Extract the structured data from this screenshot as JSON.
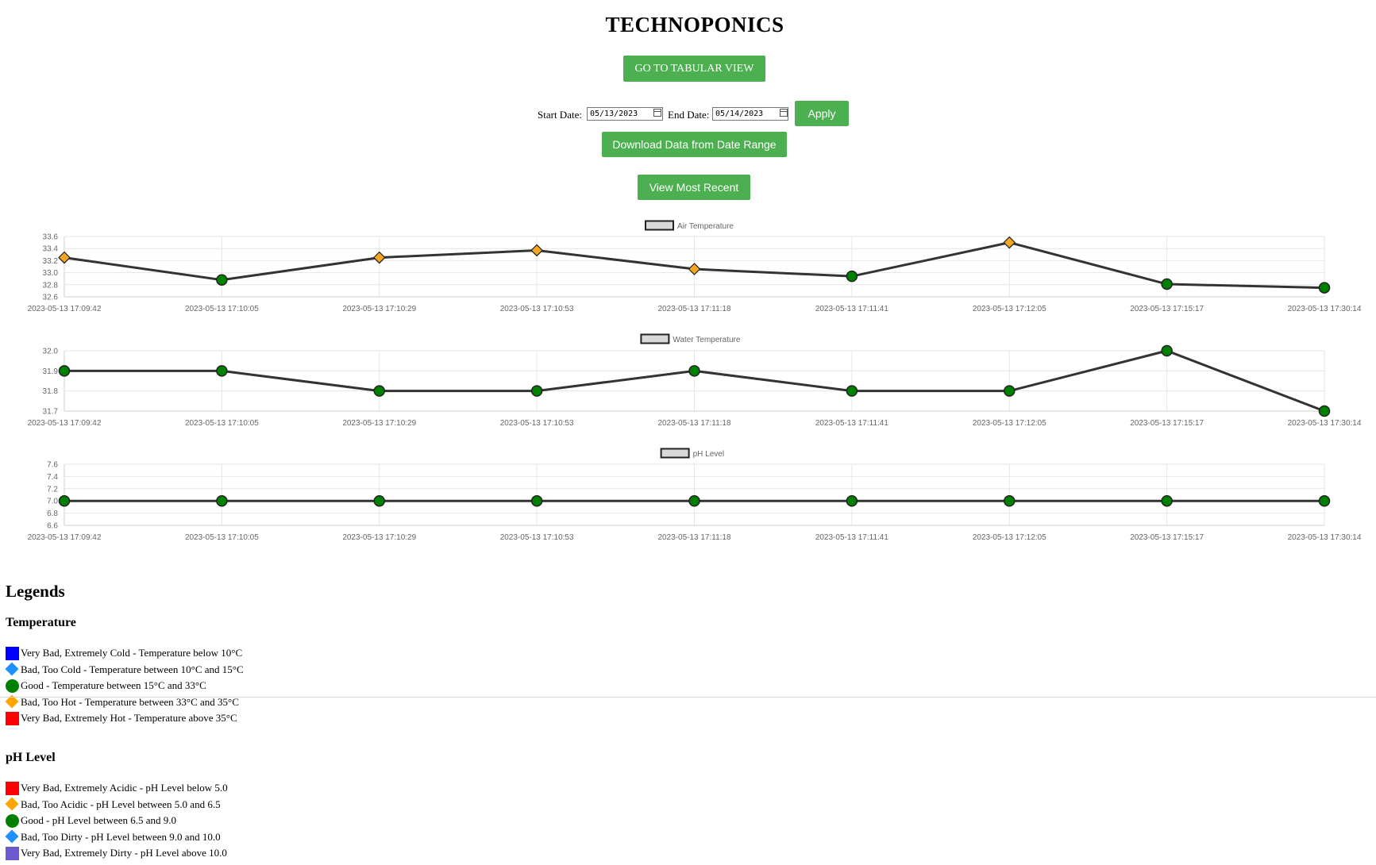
{
  "header": {
    "title": "TECHNOPONICS"
  },
  "buttons": {
    "tabular": "GO TO TABULAR VIEW",
    "apply": "Apply",
    "download": "Download Data from Date Range",
    "recent": "View Most Recent"
  },
  "date_filter": {
    "start_label": "Start Date:",
    "start_value": "05/13/2023",
    "end_label": "End Date:",
    "end_value": "05/14/2023"
  },
  "colors": {
    "accent_green": "#4caf50",
    "good": "#008000",
    "too_hot": "#f5a623",
    "line": "#333333"
  },
  "chart_data": [
    {
      "type": "line",
      "title": "",
      "legend": "Air Temperature",
      "x": [
        "2023-05-13 17:09:42",
        "2023-05-13 17:10:05",
        "2023-05-13 17:10:29",
        "2023-05-13 17:10:53",
        "2023-05-13 17:11:18",
        "2023-05-13 17:11:41",
        "2023-05-13 17:12:05",
        "2023-05-13 17:15:17",
        "2023-05-13 17:30:14"
      ],
      "series": [
        {
          "name": "Air Temperature",
          "values": [
            33.25,
            32.88,
            33.25,
            33.37,
            33.06,
            32.94,
            33.5,
            32.81,
            32.75
          ]
        }
      ],
      "markers": [
        "diamond-orange",
        "circle-green",
        "diamond-orange",
        "diamond-orange",
        "diamond-orange",
        "circle-green",
        "diamond-orange",
        "circle-green",
        "circle-green"
      ],
      "yticks": [
        "33.6",
        "33.4",
        "33.2",
        "33.0",
        "32.8",
        "32.6"
      ],
      "ylim": [
        32.6,
        33.6
      ],
      "grid": true,
      "legend_position": "top-center"
    },
    {
      "type": "line",
      "title": "",
      "legend": "Water Temperature",
      "x": [
        "2023-05-13 17:09:42",
        "2023-05-13 17:10:05",
        "2023-05-13 17:10:29",
        "2023-05-13 17:10:53",
        "2023-05-13 17:11:18",
        "2023-05-13 17:11:41",
        "2023-05-13 17:12:05",
        "2023-05-13 17:15:17",
        "2023-05-13 17:30:14"
      ],
      "series": [
        {
          "name": "Water Temperature",
          "values": [
            31.9,
            31.9,
            31.8,
            31.8,
            31.9,
            31.8,
            31.8,
            32.0,
            31.7
          ]
        }
      ],
      "markers": [
        "circle-green",
        "circle-green",
        "circle-green",
        "circle-green",
        "circle-green",
        "circle-green",
        "circle-green",
        "circle-green",
        "circle-green"
      ],
      "yticks": [
        "32.0",
        "31.9",
        "31.8",
        "31.7"
      ],
      "ylim": [
        31.7,
        32.0
      ],
      "grid": true,
      "legend_position": "top-center"
    },
    {
      "type": "line",
      "title": "",
      "legend": "pH Level",
      "x": [
        "2023-05-13 17:09:42",
        "2023-05-13 17:10:05",
        "2023-05-13 17:10:29",
        "2023-05-13 17:10:53",
        "2023-05-13 17:11:18",
        "2023-05-13 17:11:41",
        "2023-05-13 17:12:05",
        "2023-05-13 17:15:17",
        "2023-05-13 17:30:14"
      ],
      "series": [
        {
          "name": "pH Level",
          "values": [
            7.0,
            7.0,
            7.0,
            7.0,
            7.0,
            7.0,
            7.0,
            7.0,
            7.0
          ]
        }
      ],
      "markers": [
        "circle-green",
        "circle-green",
        "circle-green",
        "circle-green",
        "circle-green",
        "circle-green",
        "circle-green",
        "circle-green",
        "circle-green"
      ],
      "yticks": [
        "7.6",
        "7.4",
        "7.2",
        "7.0",
        "6.8",
        "6.6"
      ],
      "ylim": [
        6.6,
        7.6
      ],
      "grid": true,
      "legend_position": "top-center"
    }
  ],
  "legends": {
    "heading": "Legends",
    "temperature": {
      "heading": "Temperature",
      "items": [
        {
          "shape": "square",
          "color": "#0000ff",
          "text": "Very Bad, Extremely Cold - Temperature below 10°C"
        },
        {
          "shape": "diamond",
          "color": "#1e90ff",
          "text": "Bad, Too Cold - Temperature between 10°C and 15°C"
        },
        {
          "shape": "circle",
          "color": "#008000",
          "text": "Good - Temperature between 15°C and 33°C"
        },
        {
          "shape": "diamond",
          "color": "#ffa500",
          "text": "Bad, Too Hot - Temperature between 33°C and 35°C"
        },
        {
          "shape": "square",
          "color": "#ff0000",
          "text": "Very Bad, Extremely Hot - Temperature above 35°C"
        }
      ]
    },
    "ph": {
      "heading": "pH Level",
      "items": [
        {
          "shape": "square",
          "color": "#ff0000",
          "text": "Very Bad, Extremely Acidic - pH Level below 5.0"
        },
        {
          "shape": "diamond",
          "color": "#ffa500",
          "text": "Bad, Too Acidic - pH Level between 5.0 and 6.5"
        },
        {
          "shape": "circle",
          "color": "#008000",
          "text": "Good - pH Level between 6.5 and 9.0"
        },
        {
          "shape": "diamond",
          "color": "#1e90ff",
          "text": "Bad, Too Dirty - pH Level between 9.0 and 10.0"
        },
        {
          "shape": "square",
          "color": "#6a5acd",
          "text": "Very Bad, Extremely Dirty - pH Level above 10.0"
        }
      ]
    }
  }
}
